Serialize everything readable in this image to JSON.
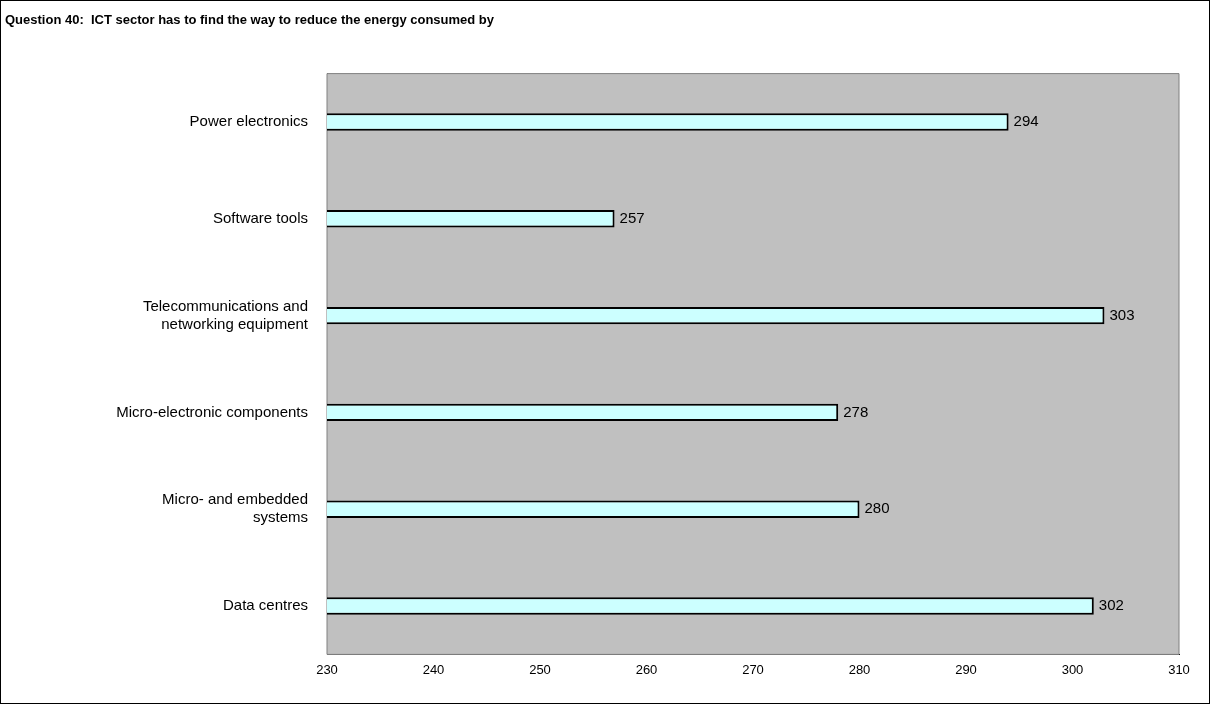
{
  "chart_data": {
    "type": "bar",
    "orientation": "horizontal",
    "title": "Question 40:  ICT sector has to find the way to reduce the energy consumed by",
    "categories": [
      "Power electronics",
      "Software tools",
      "Telecommunications and\nnetworking equipment",
      "Micro-electronic components",
      "Micro- and embedded\nsystems",
      "Data centres"
    ],
    "values": [
      294,
      257,
      303,
      278,
      280,
      302
    ],
    "color": "#ccffff",
    "xlim": [
      230,
      310
    ],
    "xticks": [
      230,
      240,
      250,
      260,
      270,
      280,
      290,
      300,
      310
    ],
    "grid": false,
    "legend": false,
    "data_labels": true
  }
}
